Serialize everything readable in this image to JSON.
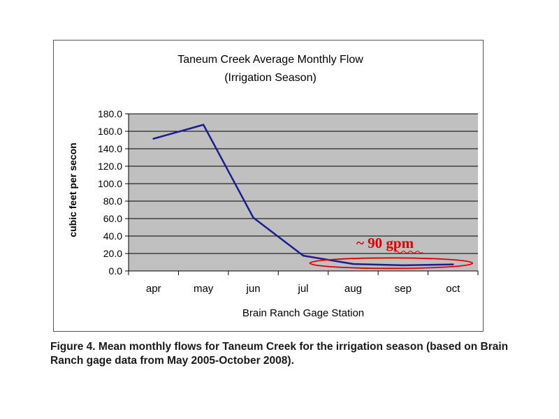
{
  "chart_data": {
    "type": "line",
    "title": "Taneum Creek Average Monthly Flow",
    "subtitle": "(Irrigation Season)",
    "xlabel": "Brain Ranch Gage Station",
    "ylabel": "cubic feet per secon",
    "categories": [
      "apr",
      "may",
      "jun",
      "jul",
      "aug",
      "sep",
      "oct"
    ],
    "series": [
      {
        "values": [
          151.5,
          167.5,
          61.0,
          17.5,
          8.0,
          6.5,
          7.5
        ]
      }
    ],
    "ylim": [
      0,
      180
    ],
    "yticks": [
      "0.0",
      "20.0",
      "40.0",
      "60.0",
      "80.0",
      "100.0",
      "120.0",
      "140.0",
      "160.0",
      "180.0"
    ],
    "grid": true,
    "legend": "none",
    "annotation": {
      "text": "~ 90 gpm",
      "categories_circled": [
        "aug",
        "sep",
        "oct"
      ],
      "color": "#e00000"
    },
    "colors": {
      "line": "#1a1f8c",
      "plot_background": "#c0c0c0",
      "annotation": "#e00000"
    }
  },
  "caption": "Figure 4.  Mean monthly flows for Taneum Creek for the irrigation season (based on Brain Ranch gage data from May 2005-October 2008)."
}
